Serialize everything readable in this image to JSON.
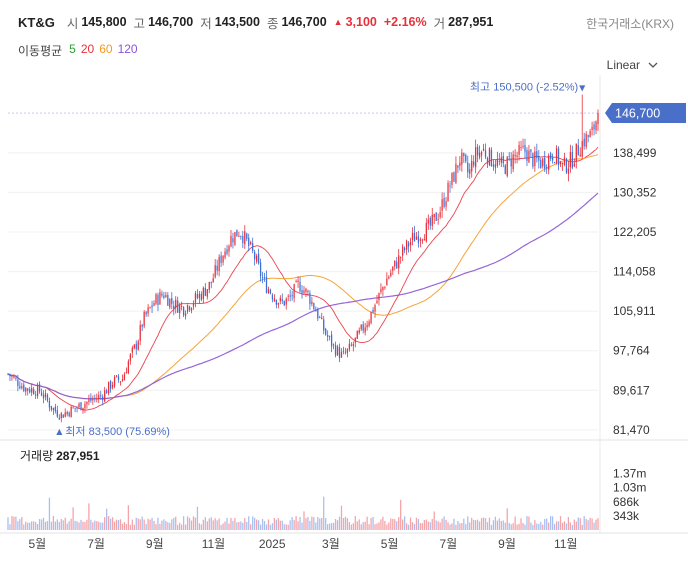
{
  "header": {
    "stock_name": "KT&G",
    "open_label": "시",
    "open_value": "145,800",
    "high_label": "고",
    "high_value": "146,700",
    "low_label": "저",
    "low_value": "143,500",
    "close_label": "종",
    "close_value": "146,700",
    "change_value": "3,100",
    "change_pct": "+2.16%",
    "volume_label": "거",
    "volume_value": "287,951",
    "exchange": "한국거래소(KRX)",
    "up_color": "#e8303b"
  },
  "ma_legend": {
    "title": "이동평균",
    "items": [
      {
        "label": "5",
        "color": "#2e9d3a"
      },
      {
        "label": "20",
        "color": "#e8303b"
      },
      {
        "label": "60",
        "color": "#f59a23"
      },
      {
        "label": "120",
        "color": "#8a55d6"
      }
    ]
  },
  "scale_select": {
    "value": "Linear",
    "icon": "chevron-down-icon"
  },
  "volume": {
    "title": "거래량",
    "value": "287,951"
  },
  "chart_data": {
    "type": "candlestick",
    "y_tick_labels": [
      "138,499",
      "130,352",
      "122,205",
      "114,058",
      "105,911",
      "97,764",
      "89,617",
      "81,470"
    ],
    "y_ticks": [
      138499,
      130352,
      122205,
      114058,
      105911,
      97764,
      89617,
      81470
    ],
    "ylim": [
      80000,
      153500
    ],
    "x_tick_labels": [
      "5월",
      "7월",
      "9월",
      "11월",
      "2025",
      "3월",
      "5월",
      "7월",
      "9월",
      "11월"
    ],
    "x_tick_months": [
      1,
      3,
      5,
      7,
      9,
      11,
      13,
      15,
      17,
      19
    ],
    "x_range_months": [
      0,
      20.1
    ],
    "current_price_label": "146,700",
    "current_price": 146700,
    "max_label": "최고 150,500 (-2.52%)",
    "max_price": 150500,
    "min_label": "최저 83,500 (75.69%)",
    "min_price": 83500,
    "up_color": "#e8303b",
    "down_color": "#3b6fd8",
    "price_path": [
      [
        0,
        93000
      ],
      [
        0.6,
        90000
      ],
      [
        1.1,
        89500
      ],
      [
        1.5,
        86000
      ],
      [
        1.8,
        84500
      ],
      [
        2.3,
        86000
      ],
      [
        2.8,
        87500
      ],
      [
        3.2,
        88500
      ],
      [
        3.6,
        91500
      ],
      [
        3.9,
        92000
      ],
      [
        4.1,
        95500
      ],
      [
        4.4,
        99500
      ],
      [
        4.6,
        104000
      ],
      [
        4.8,
        106000
      ],
      [
        5.0,
        108000
      ],
      [
        5.3,
        109500
      ],
      [
        5.6,
        107500
      ],
      [
        6.0,
        106500
      ],
      [
        6.3,
        108000
      ],
      [
        6.6,
        109500
      ],
      [
        6.9,
        111500
      ],
      [
        7.3,
        117500
      ],
      [
        7.6,
        121000
      ],
      [
        7.9,
        122500
      ],
      [
        8.1,
        120500
      ],
      [
        8.4,
        117000
      ],
      [
        8.7,
        112000
      ],
      [
        9.0,
        109500
      ],
      [
        9.3,
        107500
      ],
      [
        9.6,
        108500
      ],
      [
        9.9,
        111500
      ],
      [
        10.2,
        109500
      ],
      [
        10.5,
        106000
      ],
      [
        10.8,
        101500
      ],
      [
        11.1,
        98500
      ],
      [
        11.4,
        96500
      ],
      [
        11.7,
        98500
      ],
      [
        12.0,
        101500
      ],
      [
        12.3,
        104500
      ],
      [
        12.6,
        108500
      ],
      [
        12.9,
        112500
      ],
      [
        13.2,
        115500
      ],
      [
        13.5,
        118500
      ],
      [
        13.8,
        121000
      ],
      [
        14.1,
        122000
      ],
      [
        14.4,
        123500
      ],
      [
        14.7,
        126500
      ],
      [
        15.0,
        131000
      ],
      [
        15.2,
        134000
      ],
      [
        15.4,
        137500
      ],
      [
        15.7,
        134000
      ],
      [
        15.9,
        138000
      ],
      [
        16.2,
        139000
      ],
      [
        16.5,
        137000
      ],
      [
        16.9,
        135500
      ],
      [
        17.2,
        137500
      ],
      [
        17.6,
        139000
      ],
      [
        17.9,
        137000
      ],
      [
        18.2,
        136500
      ],
      [
        18.6,
        138500
      ],
      [
        18.9,
        135500
      ],
      [
        19.2,
        137000
      ],
      [
        19.6,
        141000
      ],
      [
        19.9,
        142500
      ],
      [
        20.1,
        146700
      ]
    ],
    "volume_ticks": [
      "1.37m",
      "1.03m",
      "686k",
      "343k"
    ],
    "volume_tick_values": [
      1370000,
      1030000,
      686000,
      343000
    ],
    "volume_ylim": [
      0,
      1700000
    ]
  }
}
